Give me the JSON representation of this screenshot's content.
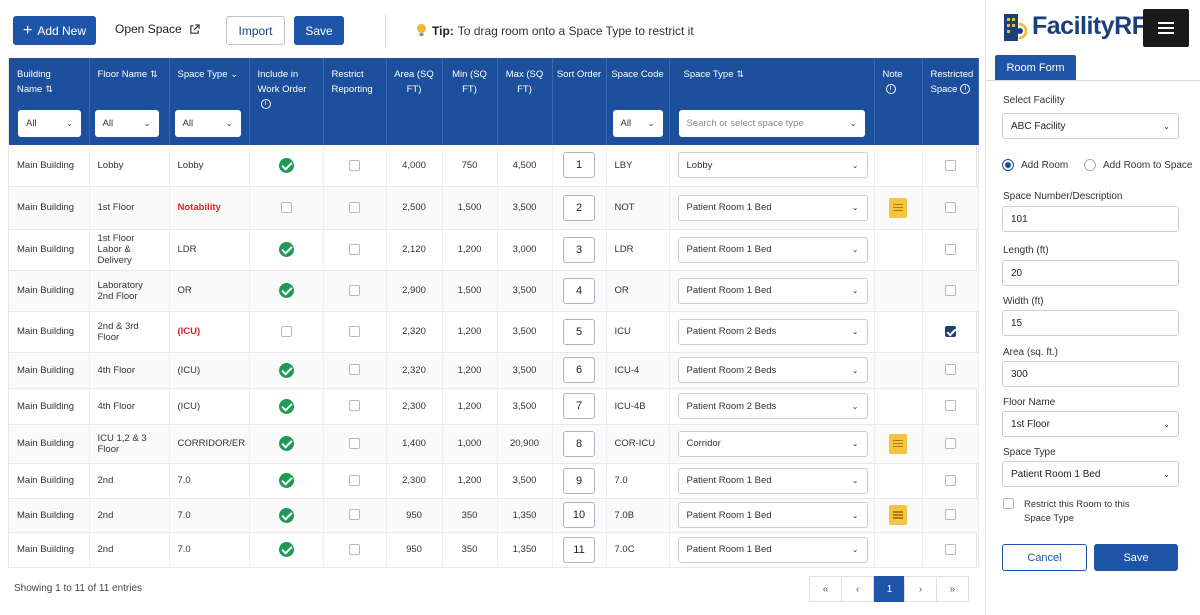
{
  "toolbar": {
    "add_new": "Add New",
    "open_space": "Open Space",
    "import": "Import",
    "save": "Save",
    "tip_bold": "Tip:",
    "tip_text": "To drag room onto a Space Type to restrict it"
  },
  "table": {
    "headers": {
      "building": "Building Name",
      "floor": "Floor Name",
      "space_type": "Space Type",
      "include": "Include in Work Order",
      "restrict": "Restrict Reporting",
      "area": "Area (SQ FT)",
      "min": "Min (SQ FT)",
      "max": "Max (SQ FT)",
      "sort": "Sort Order",
      "code": "Space Code",
      "space_type2": "Space Type",
      "note": "Note",
      "restricted": "Restricted Space"
    },
    "filters": {
      "building": "All",
      "floor": "All",
      "space_type": "All",
      "code": "All",
      "space_type_search": "Search or select space type"
    },
    "rows": [
      {
        "building": "Main Building",
        "floor": "Lobby",
        "space_type": "Lobby",
        "space_type_red": false,
        "include": true,
        "restrict": false,
        "area": "4,000",
        "min": "750",
        "max": "4,500",
        "sort": "1",
        "code": "LBY",
        "type": "Lobby",
        "note": false,
        "restricted": false
      },
      {
        "building": "Main Building",
        "floor": "1st Floor",
        "space_type": "Notability",
        "space_type_red": true,
        "include": false,
        "restrict": false,
        "area": "2,500",
        "min": "1,500",
        "max": "3,500",
        "sort": "2",
        "code": "NOT",
        "type": "Patient Room 1 Bed",
        "note": true,
        "restricted": false
      },
      {
        "building": "Main Building",
        "floor": "1st Floor Labor & Delivery",
        "space_type": "LDR",
        "space_type_red": false,
        "include": true,
        "restrict": false,
        "area": "2,120",
        "min": "1,200",
        "max": "3,000",
        "sort": "3",
        "code": "LDR",
        "type": "Patient Room 1 Bed",
        "note": false,
        "restricted": false
      },
      {
        "building": "Main Building",
        "floor": "Laboratory 2nd Floor",
        "space_type": "OR",
        "space_type_red": false,
        "include": true,
        "restrict": false,
        "area": "2,900",
        "min": "1,500",
        "max": "3,500",
        "sort": "4",
        "code": "OR",
        "type": "Patient Room 1 Bed",
        "note": false,
        "restricted": false
      },
      {
        "building": "Main Building",
        "floor": "2nd & 3rd Floor",
        "space_type": "(ICU)",
        "space_type_red": true,
        "include": false,
        "restrict": false,
        "area": "2,320",
        "min": "1,200",
        "max": "3,500",
        "sort": "5",
        "code": "ICU",
        "type": "Patient Room 2 Beds",
        "note": false,
        "restricted": true
      },
      {
        "building": "Main Building",
        "floor": "4th Floor",
        "space_type": "(ICU)",
        "space_type_red": false,
        "include": true,
        "restrict": false,
        "area": "2,320",
        "min": "1,200",
        "max": "3,500",
        "sort": "6",
        "code": "ICU-4",
        "type": "Patient Room 2 Beds",
        "note": false,
        "restricted": false
      },
      {
        "building": "Main Building",
        "floor": "4th Floor",
        "space_type": "(ICU)",
        "space_type_red": false,
        "include": true,
        "restrict": false,
        "area": "2,300",
        "min": "1,200",
        "max": "3,500",
        "sort": "7",
        "code": "ICU-4B",
        "type": "Patient Room 2 Beds",
        "note": false,
        "restricted": false
      },
      {
        "building": "Main Building",
        "floor": "ICU 1,2 & 3 Floor",
        "space_type": "CORRIDOR/ER",
        "space_type_red": false,
        "include": true,
        "restrict": false,
        "area": "1,400",
        "min": "1,000",
        "max": "20,900",
        "sort": "8",
        "code": "COR-ICU",
        "type": "Corridor",
        "note": true,
        "restricted": false
      },
      {
        "building": "Main Building",
        "floor": "2nd",
        "space_type": "7.0",
        "space_type_red": false,
        "include": true,
        "restrict": false,
        "area": "2,300",
        "min": "1,200",
        "max": "3,500",
        "sort": "9",
        "code": "7.0",
        "type": "Patient Room 1 Bed",
        "note": false,
        "restricted": false
      },
      {
        "building": "Main Building",
        "floor": "2nd",
        "space_type": "7.0",
        "space_type_red": false,
        "include": true,
        "restrict": false,
        "area": "950",
        "min": "350",
        "max": "1,350",
        "sort": "10",
        "code": "7.0B",
        "type": "Patient Room 1 Bed",
        "note": true,
        "restricted": false
      },
      {
        "building": "Main Building",
        "floor": "2nd",
        "space_type": "7.0",
        "space_type_red": false,
        "include": true,
        "restrict": false,
        "area": "950",
        "min": "350",
        "max": "1,350",
        "sort": "11",
        "code": "7.0C",
        "type": "Patient Room 1 Bed",
        "note": false,
        "restricted": false
      }
    ]
  },
  "footer": {
    "info": "Showing 1 to 11 of 11 entries",
    "pages": [
      "«",
      "‹",
      "1",
      "›",
      "»"
    ],
    "current_page": "1"
  },
  "panel": {
    "logo": "FacilityRF",
    "tab": "Room Form",
    "select_facility_label": "Select Facility",
    "facility_value": "ABC Facility",
    "radio_add_room": "Add Room",
    "radio_add_to_space": "Add Room to Space",
    "space_number_label": "Space Number/Description",
    "space_number_value": "101",
    "length_label": "Length (ft)",
    "length_value": "20",
    "width_label": "Width (ft)",
    "width_value": "15",
    "area_label": "Area (sq. ft.)",
    "area_value": "300",
    "floor_label": "Floor Name",
    "floor_value": "1st Floor",
    "space_type_label": "Space Type",
    "space_type_value": "Patient Room 1 Bed",
    "restrict_label": "Restrict this Room to this Space Type",
    "cancel": "Cancel",
    "save": "Save"
  },
  "colors": {
    "primary": "#1f55a8",
    "header": "#1c4f9c",
    "success": "#1f9a55",
    "danger": "#d6252b",
    "note": "#f5c242"
  }
}
